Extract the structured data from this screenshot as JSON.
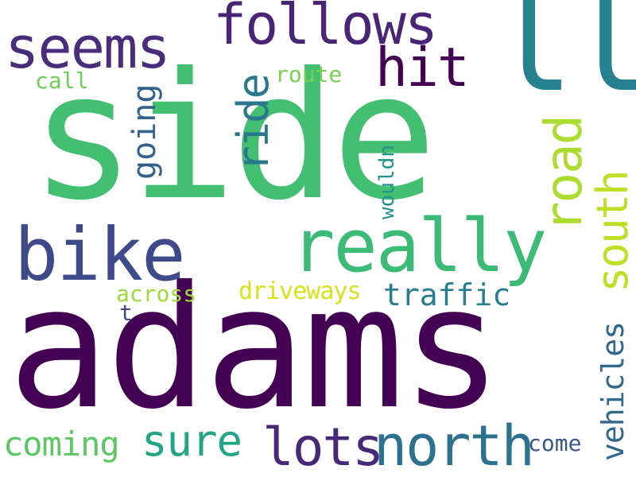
{
  "words": [
    {
      "text": "adams",
      "color": "#440154"
    },
    {
      "text": "side",
      "color": "#43bf71"
    },
    {
      "text": "ll",
      "color": "#26828e"
    },
    {
      "text": "bike",
      "color": "#3e4a89"
    },
    {
      "text": "really",
      "color": "#3bbb75"
    },
    {
      "text": "seems",
      "color": "#472d7b"
    },
    {
      "text": "follows",
      "color": "#482576"
    },
    {
      "text": "hit",
      "color": "#440154"
    },
    {
      "text": "north",
      "color": "#2c718e"
    },
    {
      "text": "lots",
      "color": "#482878"
    },
    {
      "text": "sure",
      "color": "#21a585"
    },
    {
      "text": "coming",
      "color": "#5cc863"
    },
    {
      "text": "traffic",
      "color": "#287d8e"
    },
    {
      "text": "road",
      "color": "#addc30"
    },
    {
      "text": "south",
      "color": "#bddf26"
    },
    {
      "text": "ride",
      "color": "#2a788e"
    },
    {
      "text": "going",
      "color": "#33638d"
    },
    {
      "text": "vehicles",
      "color": "#31688e"
    },
    {
      "text": "driveways",
      "color": "#d8e219"
    },
    {
      "text": "across",
      "color": "#a0da39"
    },
    {
      "text": "route",
      "color": "#7ad151"
    },
    {
      "text": "call",
      "color": "#6ece58"
    },
    {
      "text": "wouldn",
      "color": "#1f948c"
    },
    {
      "text": "come",
      "color": "#39568c"
    },
    {
      "text": "t",
      "color": "#3e4a89"
    }
  ]
}
